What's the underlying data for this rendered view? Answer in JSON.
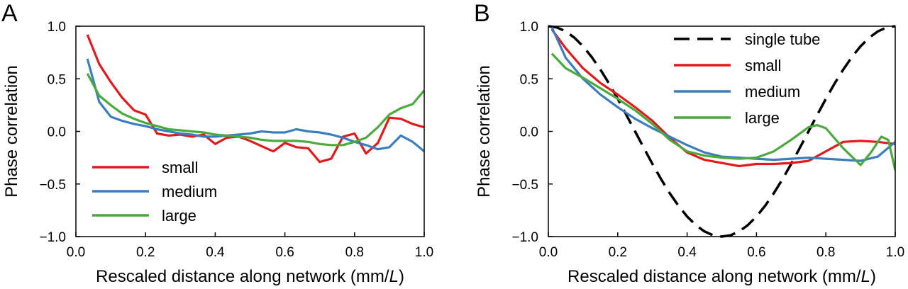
{
  "chart_data": [
    {
      "panel": "A",
      "type": "line",
      "xlabel_main": "Rescaled distance along network (mm/",
      "xlabel_italic": "L",
      "xlabel_end": ")",
      "ylabel": "Phase correlation",
      "xlim": [
        0.0,
        1.0
      ],
      "ylim": [
        -1.0,
        1.0
      ],
      "x_ticks": [
        "0.0",
        "0.2",
        "0.4",
        "0.6",
        "0.8",
        "1.0"
      ],
      "y_ticks": [
        "1.0",
        "0.5",
        "0.0",
        "−0.5",
        "−1.0"
      ],
      "legend_position": "bottom-left",
      "series": [
        {
          "name": "small",
          "color": "#e31a1c",
          "x": [
            0.033,
            0.067,
            0.1,
            0.133,
            0.167,
            0.2,
            0.233,
            0.267,
            0.3,
            0.333,
            0.367,
            0.4,
            0.433,
            0.467,
            0.5,
            0.533,
            0.567,
            0.6,
            0.633,
            0.667,
            0.7,
            0.733,
            0.767,
            0.8,
            0.833,
            0.867,
            0.9,
            0.933,
            0.967,
            1.0
          ],
          "y": [
            0.92,
            0.64,
            0.47,
            0.32,
            0.2,
            0.16,
            -0.02,
            -0.04,
            -0.03,
            -0.05,
            -0.03,
            -0.12,
            -0.06,
            -0.05,
            -0.09,
            -0.14,
            -0.19,
            -0.11,
            -0.15,
            -0.16,
            -0.29,
            -0.26,
            -0.05,
            -0.02,
            -0.21,
            -0.11,
            0.13,
            0.12,
            0.07,
            0.04
          ]
        },
        {
          "name": "medium",
          "color": "#3a7dc0",
          "x": [
            0.033,
            0.067,
            0.1,
            0.133,
            0.167,
            0.2,
            0.233,
            0.267,
            0.3,
            0.333,
            0.367,
            0.4,
            0.433,
            0.467,
            0.5,
            0.533,
            0.567,
            0.6,
            0.633,
            0.667,
            0.7,
            0.733,
            0.767,
            0.8,
            0.833,
            0.867,
            0.9,
            0.933,
            0.967,
            1.0
          ],
          "y": [
            0.69,
            0.28,
            0.14,
            0.1,
            0.07,
            0.05,
            0.02,
            0.0,
            -0.02,
            -0.03,
            -0.05,
            -0.05,
            -0.04,
            -0.03,
            -0.02,
            0.0,
            -0.01,
            -0.01,
            0.02,
            0.0,
            -0.01,
            -0.03,
            -0.06,
            -0.1,
            -0.13,
            -0.17,
            -0.15,
            -0.04,
            -0.1,
            -0.19
          ]
        },
        {
          "name": "large",
          "color": "#4aaa3c",
          "x": [
            0.033,
            0.067,
            0.1,
            0.133,
            0.167,
            0.2,
            0.233,
            0.267,
            0.3,
            0.333,
            0.367,
            0.4,
            0.433,
            0.467,
            0.5,
            0.533,
            0.567,
            0.6,
            0.633,
            0.667,
            0.7,
            0.733,
            0.767,
            0.8,
            0.833,
            0.867,
            0.9,
            0.933,
            0.967,
            1.0
          ],
          "y": [
            0.55,
            0.34,
            0.25,
            0.17,
            0.12,
            0.08,
            0.05,
            0.02,
            0.01,
            0.0,
            -0.01,
            -0.03,
            -0.04,
            -0.05,
            -0.06,
            -0.08,
            -0.09,
            -0.09,
            -0.09,
            -0.1,
            -0.12,
            -0.13,
            -0.13,
            -0.1,
            -0.06,
            0.04,
            0.16,
            0.22,
            0.26,
            0.39
          ]
        }
      ]
    },
    {
      "panel": "B",
      "type": "line",
      "xlabel_main": "Rescaled distance along network (mm/",
      "xlabel_italic": "L",
      "xlabel_end": ")",
      "ylabel": "Phase correlation",
      "xlim": [
        0.0,
        1.0
      ],
      "ylim": [
        -1.0,
        1.0
      ],
      "x_ticks": [
        "0.0",
        "0.2",
        "0.4",
        "0.6",
        "0.8",
        "1.0"
      ],
      "y_ticks": [
        "1.0",
        "0.5",
        "0.0",
        "−0.5",
        "−1.0"
      ],
      "legend_position": "top-right",
      "series": [
        {
          "name": "single tube",
          "color": "#000000",
          "dashed": true,
          "x": [
            0.0,
            0.025,
            0.05,
            0.075,
            0.1,
            0.125,
            0.15,
            0.175,
            0.2,
            0.225,
            0.25,
            0.275,
            0.3,
            0.325,
            0.35,
            0.375,
            0.4,
            0.425,
            0.45,
            0.475,
            0.5,
            0.525,
            0.55,
            0.575,
            0.6,
            0.625,
            0.65,
            0.675,
            0.7,
            0.725,
            0.75,
            0.775,
            0.8,
            0.825,
            0.85,
            0.875,
            0.9,
            0.925,
            0.95,
            0.975,
            1.0
          ],
          "y": [
            1.0,
            0.988,
            0.951,
            0.891,
            0.809,
            0.707,
            0.588,
            0.454,
            0.309,
            0.156,
            0.0,
            -0.156,
            -0.309,
            -0.454,
            -0.588,
            -0.707,
            -0.809,
            -0.891,
            -0.951,
            -0.988,
            -1.0,
            -0.988,
            -0.951,
            -0.891,
            -0.809,
            -0.707,
            -0.588,
            -0.454,
            -0.309,
            -0.156,
            0.0,
            0.156,
            0.309,
            0.454,
            0.588,
            0.707,
            0.809,
            0.891,
            0.951,
            0.988,
            1.0
          ]
        },
        {
          "name": "small",
          "color": "#e31a1c",
          "x": [
            0.01,
            0.05,
            0.1,
            0.15,
            0.2,
            0.25,
            0.3,
            0.35,
            0.4,
            0.45,
            0.5,
            0.55,
            0.6,
            0.65,
            0.7,
            0.75,
            0.8,
            0.85,
            0.9,
            0.95,
            1.0
          ],
          "y": [
            0.97,
            0.79,
            0.6,
            0.46,
            0.35,
            0.23,
            0.1,
            -0.06,
            -0.2,
            -0.27,
            -0.3,
            -0.33,
            -0.31,
            -0.31,
            -0.3,
            -0.28,
            -0.19,
            -0.1,
            -0.09,
            -0.1,
            -0.12
          ]
        },
        {
          "name": "medium",
          "color": "#3a7dc0",
          "x": [
            0.01,
            0.05,
            0.1,
            0.15,
            0.2,
            0.25,
            0.3,
            0.35,
            0.4,
            0.45,
            0.5,
            0.55,
            0.6,
            0.65,
            0.7,
            0.75,
            0.8,
            0.85,
            0.9,
            0.95,
            1.0
          ],
          "y": [
            0.99,
            0.7,
            0.5,
            0.35,
            0.23,
            0.12,
            0.03,
            -0.05,
            -0.13,
            -0.2,
            -0.24,
            -0.25,
            -0.26,
            -0.27,
            -0.26,
            -0.25,
            -0.26,
            -0.27,
            -0.28,
            -0.24,
            -0.1
          ]
        },
        {
          "name": "large",
          "color": "#4aaa3c",
          "x": [
            0.01,
            0.05,
            0.1,
            0.15,
            0.2,
            0.25,
            0.3,
            0.35,
            0.4,
            0.45,
            0.5,
            0.55,
            0.6,
            0.65,
            0.7,
            0.75,
            0.775,
            0.8,
            0.85,
            0.9,
            0.93,
            0.96,
            0.98,
            1.0
          ],
          "y": [
            0.74,
            0.6,
            0.51,
            0.41,
            0.31,
            0.2,
            0.07,
            -0.08,
            -0.19,
            -0.23,
            -0.25,
            -0.26,
            -0.25,
            -0.19,
            -0.08,
            0.04,
            0.06,
            0.03,
            -0.16,
            -0.32,
            -0.2,
            -0.05,
            -0.08,
            -0.37
          ]
        }
      ]
    }
  ]
}
